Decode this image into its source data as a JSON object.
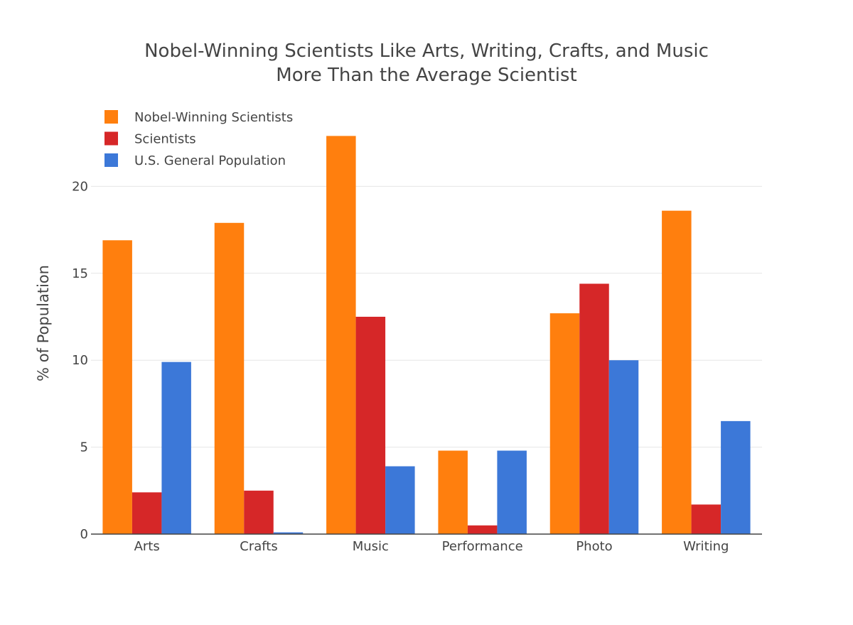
{
  "chart_data": {
    "type": "bar",
    "title_lines": [
      "Nobel-Winning Scientists Like Arts, Writing, Crafts, and Music",
      "More Than the Average Scientist"
    ],
    "xlabel": "",
    "ylabel": "% of Population",
    "ylim": [
      0,
      25
    ],
    "yticks": [
      0,
      5,
      10,
      15,
      20
    ],
    "grid": true,
    "legend_position": "top-left",
    "categories": [
      "Arts",
      "Crafts",
      "Music",
      "Performance",
      "Photo",
      "Writing"
    ],
    "series": [
      {
        "name": "Nobel-Winning Scientists",
        "color": "#ff7f0e",
        "values": [
          16.9,
          17.9,
          22.9,
          4.8,
          12.7,
          18.6
        ]
      },
      {
        "name": "Scientists",
        "color": "#d62728",
        "values": [
          2.4,
          2.5,
          12.5,
          0.5,
          14.4,
          1.7
        ]
      },
      {
        "name": "U.S. General Population",
        "color": "#3c78d8",
        "values": [
          9.9,
          0.1,
          3.9,
          4.8,
          10.0,
          6.5
        ]
      }
    ]
  }
}
